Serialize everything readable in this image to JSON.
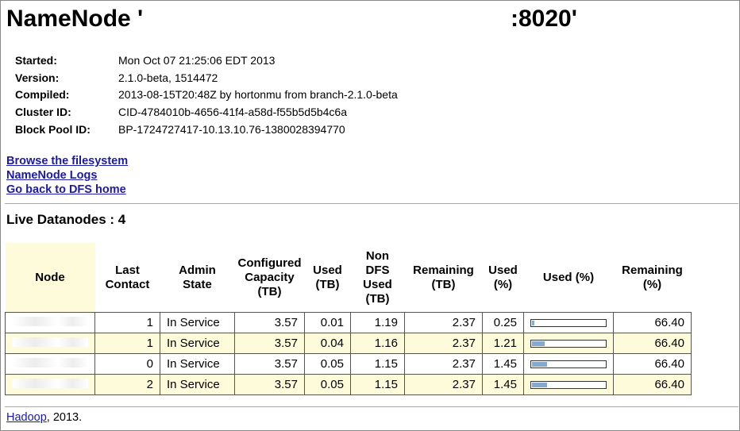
{
  "header": {
    "title": "NameNode '",
    "port": ":8020'"
  },
  "info": [
    {
      "label": "Started:",
      "value": "Mon Oct 07 21:25:06 EDT 2013"
    },
    {
      "label": "Version:",
      "value": "2.1.0-beta, 1514472"
    },
    {
      "label": "Compiled:",
      "value": "2013-08-15T20:48Z by hortonmu from branch-2.1.0-beta"
    },
    {
      "label": "Cluster ID:",
      "value": "CID-4784010b-4656-41f4-a58d-f55b5d5b4c6a"
    },
    {
      "label": "Block Pool ID:",
      "value": "BP-1724727417-10.13.10.76-1380028394770"
    }
  ],
  "links": {
    "browse": "Browse the filesystem",
    "logs": "NameNode Logs",
    "home": "Go back to DFS home"
  },
  "live": {
    "heading": "Live Datanodes : 4",
    "columns": {
      "node": "Node",
      "last_contact": "Last Contact",
      "admin_state": "Admin State",
      "configured": "Configured Capacity (TB)",
      "used_tb": "Used (TB)",
      "non_dfs": "Non DFS Used (TB)",
      "remaining_tb": "Remaining (TB)",
      "used_pct": "Used (%)",
      "used_bar": "Used (%)",
      "remaining_pct": "Remaining (%)"
    },
    "rows": [
      {
        "last_contact": "1",
        "admin_state": "In Service",
        "configured": "3.57",
        "used_tb": "0.01",
        "non_dfs": "1.19",
        "remaining_tb": "2.37",
        "used_pct": "0.25",
        "remaining_pct": "66.40",
        "used_fraction": 0.0025
      },
      {
        "last_contact": "1",
        "admin_state": "In Service",
        "configured": "3.57",
        "used_tb": "0.04",
        "non_dfs": "1.16",
        "remaining_tb": "2.37",
        "used_pct": "1.21",
        "remaining_pct": "66.40",
        "used_fraction": 0.0121
      },
      {
        "last_contact": "0",
        "admin_state": "In Service",
        "configured": "3.57",
        "used_tb": "0.05",
        "non_dfs": "1.15",
        "remaining_tb": "2.37",
        "used_pct": "1.45",
        "remaining_pct": "66.40",
        "used_fraction": 0.0145
      },
      {
        "last_contact": "2",
        "admin_state": "In Service",
        "configured": "3.57",
        "used_tb": "0.05",
        "non_dfs": "1.15",
        "remaining_tb": "2.37",
        "used_pct": "1.45",
        "remaining_pct": "66.40",
        "used_fraction": 0.0145
      }
    ]
  },
  "footer": {
    "link": "Hadoop",
    "text": ", 2013."
  }
}
